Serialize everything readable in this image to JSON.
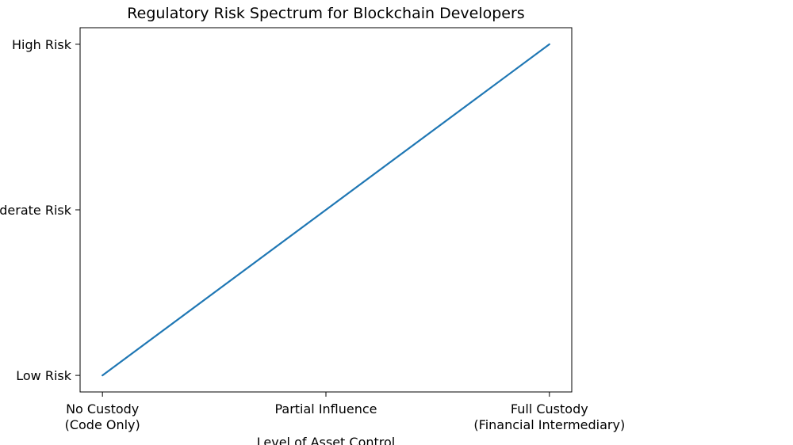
{
  "chart_data": {
    "type": "line",
    "title": "Regulatory Risk Spectrum for Blockchain Developers",
    "xlabel": "Level of Asset Control",
    "ylabel": "",
    "x_ticks": [
      {
        "value": 0,
        "lines": [
          "No Custody",
          "(Code Only)"
        ]
      },
      {
        "value": 1,
        "lines": [
          "Partial Influence"
        ]
      },
      {
        "value": 2,
        "lines": [
          "Full Custody",
          "(Financial Intermediary)"
        ]
      }
    ],
    "y_ticks": [
      {
        "value": 0,
        "label": "Low Risk"
      },
      {
        "value": 1,
        "label": "Moderate Risk"
      },
      {
        "value": 2,
        "label": "High Risk"
      }
    ],
    "xlim": [
      -0.1,
      2.1
    ],
    "ylim": [
      -0.1,
      2.1
    ],
    "series": [
      {
        "x": [
          0,
          1,
          2
        ],
        "y": [
          0,
          1,
          2
        ],
        "color": "#1f77b4"
      }
    ],
    "grid": false
  }
}
